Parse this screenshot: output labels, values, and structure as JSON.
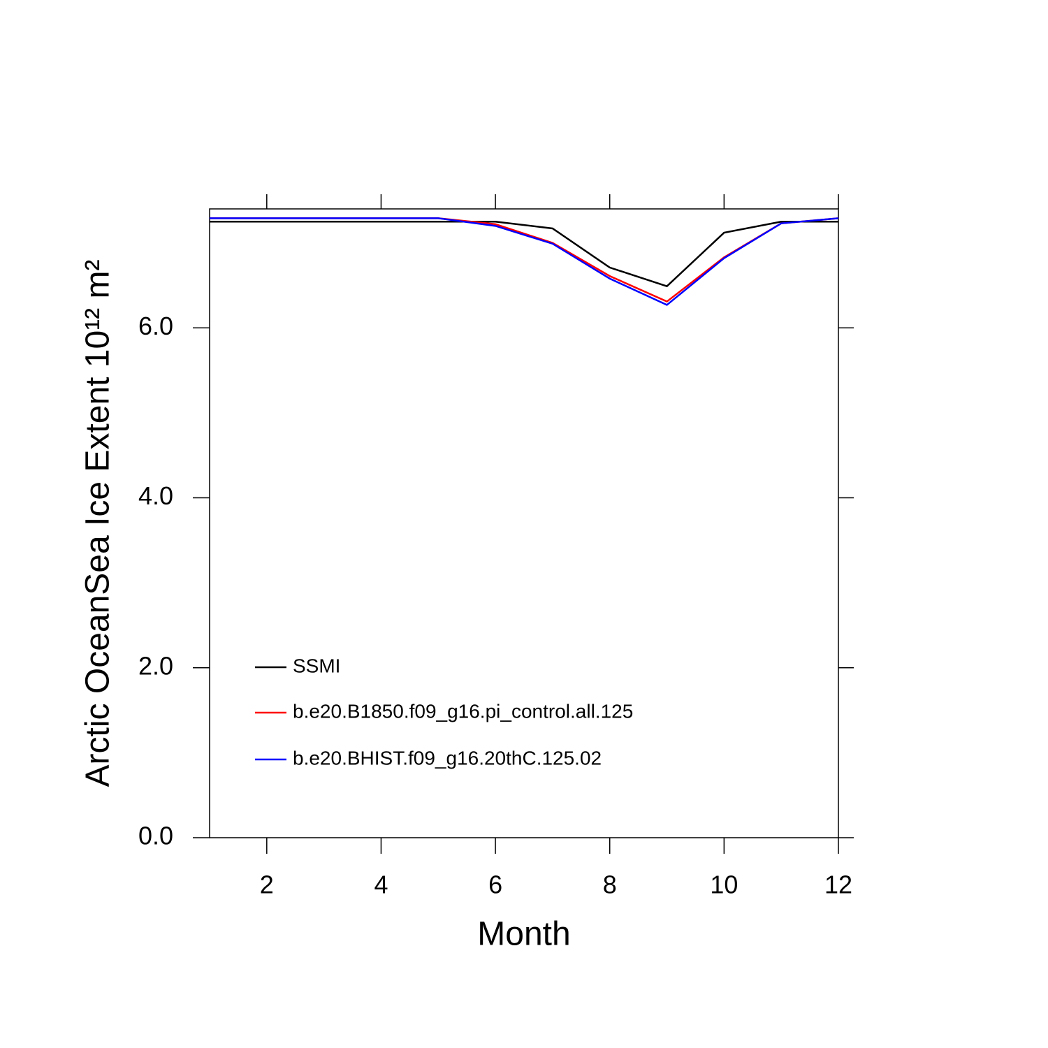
{
  "chart_data": {
    "type": "line",
    "xlabel": "Month",
    "ylabel": "Arctic OceanSea Ice Extent 10¹² m²",
    "x": [
      1,
      2,
      3,
      4,
      5,
      6,
      7,
      8,
      9,
      10,
      11,
      12
    ],
    "series": [
      {
        "name": "SSMI",
        "color": "#000000",
        "values": [
          7.25,
          7.25,
          7.25,
          7.25,
          7.25,
          7.25,
          7.17,
          6.71,
          6.49,
          7.12,
          7.25,
          7.25
        ]
      },
      {
        "name": "b.e20.B1850.f09_g16.pi_control.all.125",
        "color": "#ff0000",
        "values": [
          7.29,
          7.29,
          7.29,
          7.29,
          7.29,
          7.22,
          7.0,
          6.61,
          6.31,
          6.83,
          7.23,
          7.29
        ]
      },
      {
        "name": "b.e20.BHIST.f09_g16.20thC.125.02",
        "color": "#0000ff",
        "values": [
          7.29,
          7.29,
          7.29,
          7.29,
          7.29,
          7.2,
          6.99,
          6.58,
          6.27,
          6.82,
          7.23,
          7.29
        ]
      }
    ],
    "xlim": [
      1,
      12
    ],
    "xticks": [
      2,
      4,
      6,
      8,
      10,
      12
    ],
    "ylim": [
      0,
      7.4
    ],
    "yticks": [
      {
        "value": 0,
        "label": "0.0"
      },
      {
        "value": 2,
        "label": "2.0"
      },
      {
        "value": 4,
        "label": "4.0"
      },
      {
        "value": 6,
        "label": "6.0"
      }
    ],
    "legend": "lower-left"
  }
}
